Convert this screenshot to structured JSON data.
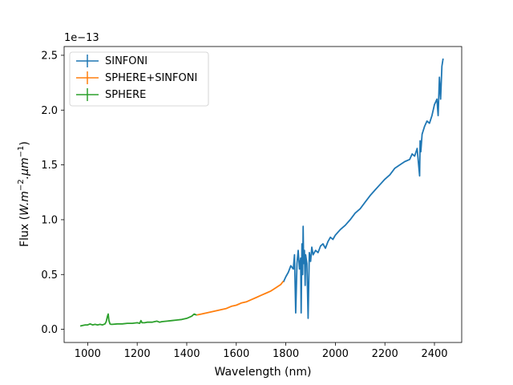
{
  "chart_data": {
    "type": "line",
    "xlabel": "Wavelength (nm)",
    "ylabel_prefix": "Flux (",
    "ylabel_unit": "W.m",
    "ylabel_exp1": "−2",
    "ylabel_mid": ".μm",
    "ylabel_exp2": "−1",
    "ylabel_suffix": ")",
    "y_offset_label": "1e−13",
    "xlim": [
      905,
      2510
    ],
    "ylim": [
      -0.12,
      2.58
    ],
    "xticks": [
      1000,
      1200,
      1400,
      1600,
      1800,
      2000,
      2200,
      2400
    ],
    "yticks": [
      0.0,
      0.5,
      1.0,
      1.5,
      2.0,
      2.5
    ],
    "ytick_labels": [
      "0.0",
      "0.5",
      "1.0",
      "1.5",
      "2.0",
      "2.5"
    ],
    "grid": false,
    "legend_position": "top-left",
    "series": [
      {
        "name": "SINFONI",
        "color": "#1f77b4",
        "x": [
          1790,
          1800,
          1810,
          1820,
          1830,
          1835,
          1840,
          1845,
          1850,
          1855,
          1860,
          1862,
          1865,
          1868,
          1870,
          1872,
          1875,
          1878,
          1880,
          1885,
          1890,
          1895,
          1900,
          1905,
          1910,
          1920,
          1930,
          1940,
          1950,
          1960,
          1970,
          1980,
          1990,
          2000,
          2020,
          2040,
          2060,
          2080,
          2100,
          2120,
          2140,
          2160,
          2180,
          2200,
          2220,
          2240,
          2260,
          2280,
          2300,
          2310,
          2320,
          2330,
          2340,
          2342,
          2345,
          2350,
          2360,
          2370,
          2380,
          2390,
          2400,
          2410,
          2415,
          2420,
          2425,
          2430,
          2435
        ],
        "y": [
          0.43,
          0.48,
          0.52,
          0.58,
          0.55,
          0.68,
          0.15,
          0.6,
          0.72,
          0.55,
          0.65,
          0.15,
          0.78,
          0.5,
          0.94,
          0.6,
          0.72,
          0.4,
          0.68,
          0.6,
          0.1,
          0.7,
          0.62,
          0.75,
          0.68,
          0.72,
          0.7,
          0.76,
          0.78,
          0.74,
          0.8,
          0.84,
          0.82,
          0.86,
          0.91,
          0.95,
          1.0,
          1.06,
          1.1,
          1.16,
          1.22,
          1.27,
          1.32,
          1.37,
          1.41,
          1.47,
          1.5,
          1.53,
          1.55,
          1.6,
          1.58,
          1.65,
          1.4,
          1.72,
          1.62,
          1.78,
          1.85,
          1.9,
          1.88,
          1.95,
          2.05,
          2.1,
          1.95,
          2.3,
          2.1,
          2.4,
          2.47
        ]
      },
      {
        "name": "SPHERE+SINFONI",
        "color": "#ff7f0e",
        "x": [
          1440,
          1460,
          1480,
          1500,
          1520,
          1540,
          1560,
          1580,
          1600,
          1620,
          1640,
          1660,
          1680,
          1700,
          1720,
          1740,
          1760,
          1780,
          1790
        ],
        "y": [
          0.13,
          0.14,
          0.15,
          0.16,
          0.17,
          0.18,
          0.19,
          0.21,
          0.22,
          0.24,
          0.25,
          0.27,
          0.29,
          0.31,
          0.33,
          0.35,
          0.38,
          0.41,
          0.44
        ]
      },
      {
        "name": "SPHERE",
        "color": "#2ca02c",
        "x": [
          970,
          980,
          990,
          1000,
          1010,
          1020,
          1030,
          1040,
          1050,
          1060,
          1070,
          1075,
          1080,
          1083,
          1086,
          1090,
          1095,
          1100,
          1120,
          1140,
          1160,
          1180,
          1200,
          1210,
          1215,
          1220,
          1230,
          1240,
          1260,
          1270,
          1280,
          1290,
          1300,
          1320,
          1340,
          1360,
          1380,
          1400,
          1410,
          1420,
          1430,
          1440
        ],
        "y": [
          0.03,
          0.035,
          0.04,
          0.04,
          0.05,
          0.04,
          0.045,
          0.04,
          0.045,
          0.04,
          0.05,
          0.07,
          0.12,
          0.14,
          0.08,
          0.05,
          0.045,
          0.045,
          0.05,
          0.05,
          0.055,
          0.055,
          0.06,
          0.055,
          0.08,
          0.06,
          0.06,
          0.065,
          0.065,
          0.07,
          0.075,
          0.065,
          0.07,
          0.075,
          0.08,
          0.085,
          0.09,
          0.1,
          0.11,
          0.12,
          0.14,
          0.13
        ]
      }
    ]
  }
}
